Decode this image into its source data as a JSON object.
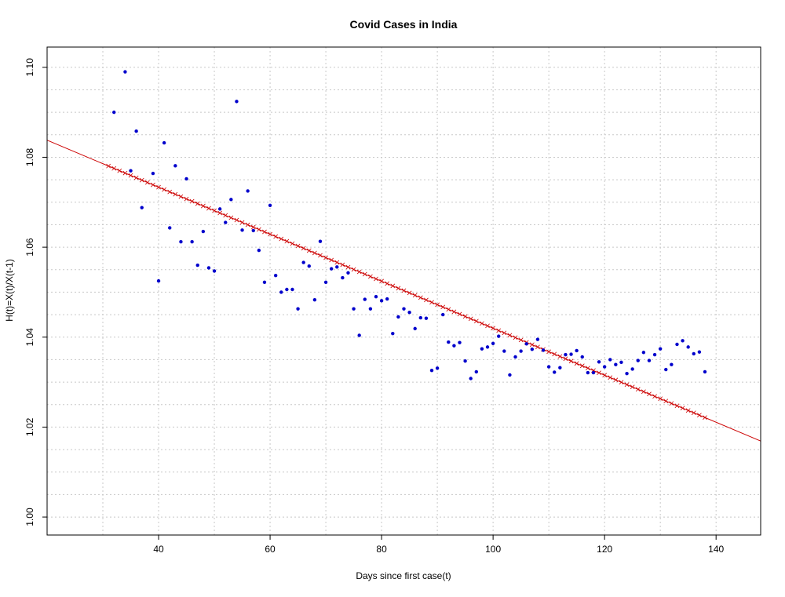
{
  "chart_data": {
    "type": "scatter",
    "title": "Covid Cases in India",
    "xlabel": "Days since first case(t)",
    "ylabel": "H(t)=X(t)/X(t-1)",
    "xlim": [
      20,
      148
    ],
    "ylim": [
      0.996,
      1.1045
    ],
    "x_ticks": [
      "40",
      "60",
      "80",
      "100",
      "120",
      "140"
    ],
    "y_ticks": [
      "1.00",
      "1.02",
      "1.04",
      "1.06",
      "1.08",
      "1.10"
    ],
    "grid": true,
    "legend": "none",
    "point_color": "#0000cc",
    "line_color": "#cc0000",
    "series": [
      {
        "type": "points",
        "x": [
          32,
          34,
          35,
          36,
          37,
          39,
          40,
          41,
          42,
          43,
          44,
          45,
          46,
          47,
          48,
          49,
          50,
          51,
          52,
          53,
          54,
          55,
          56,
          57,
          58,
          59,
          60,
          61,
          62,
          63,
          64,
          65,
          66,
          67,
          68,
          69,
          70,
          71,
          72,
          73,
          74,
          75,
          76,
          77,
          78,
          79,
          80,
          81,
          82,
          83,
          84,
          85,
          86,
          87,
          88,
          89,
          90,
          91,
          92,
          93,
          94,
          95,
          96,
          97,
          98,
          99,
          100,
          101,
          102,
          103,
          104,
          105,
          106,
          107,
          108,
          109,
          110,
          111,
          112,
          113,
          114,
          115,
          116,
          117,
          118,
          119,
          120,
          121,
          122,
          123,
          124,
          125,
          126,
          127,
          128,
          129,
          130,
          131,
          132,
          133,
          134,
          135,
          136,
          137,
          138
        ],
        "y": [
          1.09,
          1.099,
          1.077,
          1.0858,
          1.0688,
          1.0764,
          1.0525,
          1.0832,
          1.0643,
          1.0781,
          1.0612,
          1.0752,
          1.0612,
          1.056,
          1.0635,
          1.0554,
          1.0547,
          1.0685,
          1.0655,
          1.0706,
          1.0924,
          1.0638,
          1.0725,
          1.0637,
          1.0593,
          1.0522,
          1.0693,
          1.0537,
          1.05,
          1.0506,
          1.0506,
          1.0463,
          1.0566,
          1.0558,
          1.0483,
          1.0613,
          1.0522,
          1.0552,
          1.0556,
          1.0532,
          1.0543,
          1.0463,
          1.0404,
          1.0484,
          1.0463,
          1.049,
          1.0481,
          1.0485,
          1.0408,
          1.0445,
          1.0463,
          1.0455,
          1.0419,
          1.0443,
          1.0442,
          1.0326,
          1.0331,
          1.045,
          1.0389,
          1.0381,
          1.0388,
          1.0347,
          1.0308,
          1.0323,
          1.0374,
          1.0378,
          1.0386,
          1.0402,
          1.0369,
          1.0316,
          1.0356,
          1.0369,
          1.0385,
          1.0373,
          1.0395,
          1.0371,
          1.0334,
          1.0322,
          1.0332,
          1.0361,
          1.0362,
          1.037,
          1.0356,
          1.0321,
          1.0321,
          1.0345,
          1.0334,
          1.035,
          1.0339,
          1.0344,
          1.0319,
          1.0329,
          1.0348,
          1.0366,
          1.0348,
          1.0361,
          1.0374,
          1.0328,
          1.0339,
          1.0384,
          1.0392,
          1.0378,
          1.0363,
          1.0367,
          1.0323
        ]
      },
      {
        "type": "fit-line",
        "x": [
          20,
          148
        ],
        "y": [
          1.0838,
          1.0169
        ],
        "marker_x_range": [
          31,
          138
        ]
      }
    ]
  }
}
